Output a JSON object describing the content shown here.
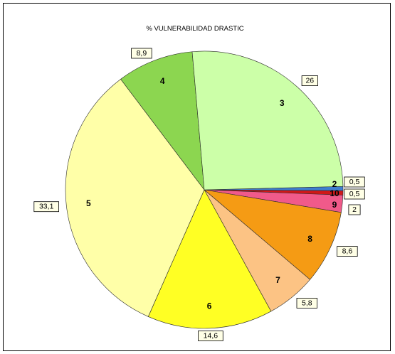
{
  "chart_data": {
    "type": "pie",
    "title": "% VULNERABILIDAD DRASTIC",
    "slices": [
      {
        "category": "2",
        "value_label": "0,5",
        "value": 0.5,
        "color": "#3f7fcf"
      },
      {
        "category": "10",
        "value_label": "0,5",
        "value": 0.5,
        "color": "#d01818"
      },
      {
        "category": "9",
        "value_label": "2",
        "value": 2.0,
        "color": "#f05a8a"
      },
      {
        "category": "8",
        "value_label": "8,6",
        "value": 8.6,
        "color": "#f59b14"
      },
      {
        "category": "7",
        "value_label": "5,8",
        "value": 5.8,
        "color": "#fcc384"
      },
      {
        "category": "6",
        "value_label": "14,6",
        "value": 14.6,
        "color": "#ffff24"
      },
      {
        "category": "5",
        "value_label": "33,1",
        "value": 33.1,
        "color": "#ffffa8"
      },
      {
        "category": "4",
        "value_label": "8,9",
        "value": 8.9,
        "color": "#8cd650"
      },
      {
        "category": "3",
        "value_label": "26",
        "value": 26.0,
        "color": "#ccffa8"
      }
    ]
  }
}
